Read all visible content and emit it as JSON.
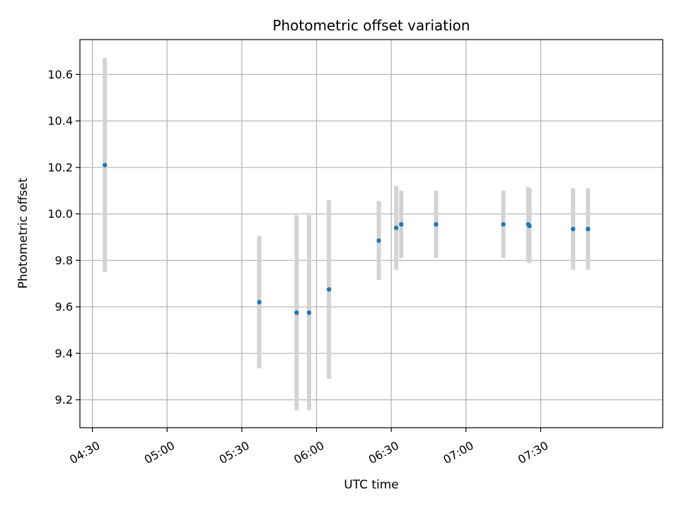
{
  "chart_data": {
    "type": "scatter",
    "title": "Photometric offset variation",
    "xlabel": "UTC time",
    "ylabel": "Photometric offset",
    "x_ticks": [
      "04:30",
      "05:00",
      "05:30",
      "06:00",
      "06:30",
      "07:00",
      "07:30"
    ],
    "y_ticks": [
      "9.2",
      "9.4",
      "9.6",
      "9.8",
      "10.0",
      "10.2",
      "10.4",
      "10.6"
    ],
    "xlim": [
      "04:25",
      "08:19"
    ],
    "ylim": [
      9.08,
      10.75
    ],
    "grid": true,
    "marker_color": "#1f77b4",
    "errorbar_color": "#d3d3d3",
    "points": [
      {
        "time": "04:35",
        "y": 10.21,
        "err": 0.46
      },
      {
        "time": "05:37",
        "y": 9.62,
        "err": 0.285
      },
      {
        "time": "05:52",
        "y": 9.575,
        "err": 0.42
      },
      {
        "time": "05:57",
        "y": 9.575,
        "err": 0.42
      },
      {
        "time": "06:05",
        "y": 9.675,
        "err": 0.385
      },
      {
        "time": "06:25",
        "y": 9.885,
        "err": 0.17
      },
      {
        "time": "06:32",
        "y": 9.94,
        "err": 0.18
      },
      {
        "time": "06:34",
        "y": 9.955,
        "err": 0.145
      },
      {
        "time": "06:48",
        "y": 9.955,
        "err": 0.145
      },
      {
        "time": "07:15",
        "y": 9.955,
        "err": 0.145
      },
      {
        "time": "07:25",
        "y": 9.955,
        "err": 0.16
      },
      {
        "time": "07:25:30",
        "y": 9.948,
        "err": 0.16
      },
      {
        "time": "07:43",
        "y": 9.935,
        "err": 0.175
      },
      {
        "time": "07:49",
        "y": 9.935,
        "err": 0.175
      }
    ]
  }
}
